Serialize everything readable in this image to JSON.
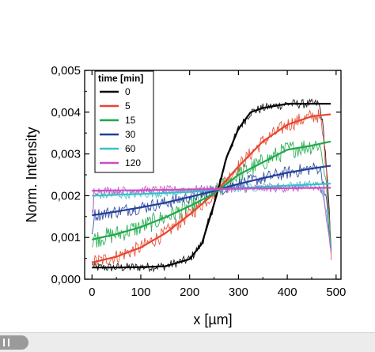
{
  "chart_data": {
    "type": "line",
    "xlabel": "x [µm]",
    "ylabel": "Norm. Intensity",
    "xlim": [
      -15,
      510
    ],
    "ylim": [
      0,
      0.005
    ],
    "x_ticks": [
      0,
      100,
      200,
      300,
      400,
      500
    ],
    "x_tick_labels": [
      "0",
      "100",
      "200",
      "300",
      "400",
      "500"
    ],
    "y_ticks": [
      0,
      0.001,
      0.002,
      0.003,
      0.004,
      0.005
    ],
    "y_tick_labels": [
      "0,000",
      "0,001",
      "0,002",
      "0,003",
      "0,004",
      "0,005"
    ],
    "grid": false,
    "legend": {
      "title": "time [min]",
      "position": "top-left"
    },
    "series": [
      {
        "name": "0",
        "color": "#000000",
        "x": [
          0,
          50,
          100,
          150,
          200,
          225,
          250,
          262,
          275,
          300,
          325,
          350,
          400,
          450,
          490
        ],
        "fit": [
          0.00028,
          0.00028,
          0.00029,
          0.00031,
          0.00048,
          0.00085,
          0.0018,
          0.0023,
          0.0029,
          0.0036,
          0.004,
          0.0041,
          0.0042,
          0.0042,
          0.0042
        ]
      },
      {
        "name": "5",
        "color": "#e8452e",
        "x": [
          0,
          50,
          100,
          150,
          200,
          250,
          262,
          300,
          350,
          400,
          450,
          490
        ],
        "fit": [
          0.0004,
          0.00054,
          0.00076,
          0.0011,
          0.00155,
          0.00205,
          0.0022,
          0.0027,
          0.0033,
          0.0037,
          0.0039,
          0.00395
        ]
      },
      {
        "name": "15",
        "color": "#1ea84a",
        "x": [
          0,
          50,
          100,
          150,
          200,
          250,
          262,
          300,
          350,
          400,
          450,
          490
        ],
        "fit": [
          0.00095,
          0.00108,
          0.00125,
          0.00148,
          0.00175,
          0.00205,
          0.00216,
          0.0025,
          0.0028,
          0.0031,
          0.0032,
          0.0033
        ]
      },
      {
        "name": "30",
        "color": "#233f9a",
        "x": [
          0,
          50,
          100,
          150,
          200,
          250,
          262,
          300,
          350,
          400,
          450,
          490
        ],
        "fit": [
          0.00153,
          0.00162,
          0.00172,
          0.00183,
          0.00197,
          0.00211,
          0.00216,
          0.00228,
          0.00242,
          0.00255,
          0.00265,
          0.00272
        ]
      },
      {
        "name": "60",
        "color": "#3cbfca",
        "x": [
          0,
          100,
          200,
          262,
          300,
          400,
          490
        ],
        "fit": [
          0.002,
          0.00204,
          0.00209,
          0.00216,
          0.00218,
          0.00224,
          0.00229
        ]
      },
      {
        "name": "120",
        "color": "#c84fc4",
        "x": [
          0,
          100,
          200,
          262,
          300,
          400,
          490
        ],
        "fit": [
          0.00212,
          0.00213,
          0.00215,
          0.00216,
          0.00217,
          0.00218,
          0.00219
        ]
      }
    ]
  }
}
